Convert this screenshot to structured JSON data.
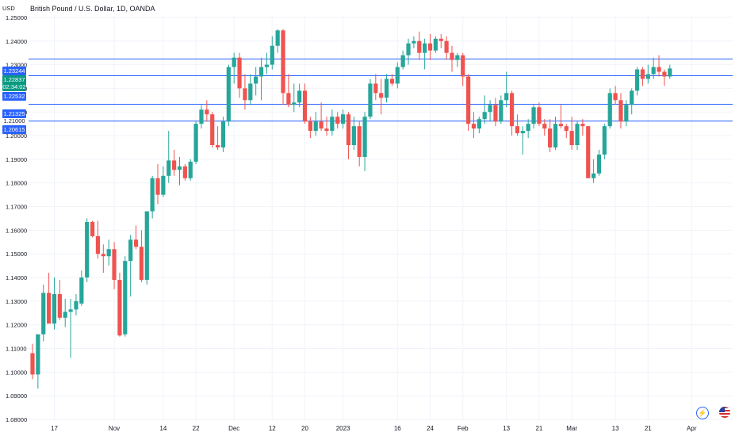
{
  "header": {
    "currency": "USD",
    "title": "British Pound / U.S. Dollar, 1D, OANDA"
  },
  "colors": {
    "up": "#26a69a",
    "down": "#ef5350",
    "level_line": "#2962ff",
    "price_badge": "#089981",
    "grid": "#f0f3fa",
    "text": "#131722"
  },
  "icons": [
    "flash-icon",
    "us-flag-icon"
  ],
  "chart_data": {
    "type": "candlestick",
    "title": "British Pound / U.S. Dollar, 1D, OANDA",
    "ylabel": "USD",
    "ylim": [
      1.078,
      1.254
    ],
    "y_ticks": [
      "1.25000",
      "1.24000",
      "1.23000",
      "1.22000",
      "1.21000",
      "1.20000",
      "1.19000",
      "1.18000",
      "1.17000",
      "1.16000",
      "1.15000",
      "1.14000",
      "1.13000",
      "1.12000",
      "1.11000",
      "1.10000",
      "1.09000",
      "1.08000"
    ],
    "x_ticks": [
      {
        "label": "17",
        "index": 4
      },
      {
        "label": "Nov",
        "index": 15
      },
      {
        "label": "14",
        "index": 24
      },
      {
        "label": "22",
        "index": 30
      },
      {
        "label": "Dec",
        "index": 37
      },
      {
        "label": "12",
        "index": 44
      },
      {
        "label": "20",
        "index": 50
      },
      {
        "label": "2023",
        "index": 57
      },
      {
        "label": "16",
        "index": 67
      },
      {
        "label": "24",
        "index": 73
      },
      {
        "label": "Feb",
        "index": 79
      },
      {
        "label": "13",
        "index": 87
      },
      {
        "label": "21",
        "index": 93
      },
      {
        "label": "Mar",
        "index": 99
      },
      {
        "label": "13",
        "index": 107
      },
      {
        "label": "21",
        "index": 113
      },
      {
        "label": "Apr",
        "index": 121
      }
    ],
    "horizontal_levels": [
      1.23244,
      1.22532,
      1.21325,
      1.20615
    ],
    "level_labels": {
      "top": "1.23244",
      "price": "1.22837",
      "countdown": "02:34:02",
      "low_band": "1.22532",
      "mid_1": "1.21325",
      "mid_2": "1.21000",
      "bottom": "1.20615"
    },
    "candles": [
      {
        "o": 1.108,
        "h": 1.112,
        "l": 1.097,
        "c": 1.099
      },
      {
        "o": 1.099,
        "h": 1.115,
        "l": 1.093,
        "c": 1.116
      },
      {
        "o": 1.116,
        "h": 1.137,
        "l": 1.113,
        "c": 1.1335
      },
      {
        "o": 1.1335,
        "h": 1.142,
        "l": 1.122,
        "c": 1.1205
      },
      {
        "o": 1.1205,
        "h": 1.14,
        "l": 1.118,
        "c": 1.133
      },
      {
        "o": 1.133,
        "h": 1.139,
        "l": 1.122,
        "c": 1.123
      },
      {
        "o": 1.123,
        "h": 1.131,
        "l": 1.119,
        "c": 1.1255
      },
      {
        "o": 1.1255,
        "h": 1.131,
        "l": 1.106,
        "c": 1.1265
      },
      {
        "o": 1.1265,
        "h": 1.133,
        "l": 1.124,
        "c": 1.13
      },
      {
        "o": 1.129,
        "h": 1.143,
        "l": 1.128,
        "c": 1.14
      },
      {
        "o": 1.14,
        "h": 1.165,
        "l": 1.138,
        "c": 1.1635
      },
      {
        "o": 1.1635,
        "h": 1.164,
        "l": 1.157,
        "c": 1.1575
      },
      {
        "o": 1.1575,
        "h": 1.164,
        "l": 1.148,
        "c": 1.15
      },
      {
        "o": 1.15,
        "h": 1.154,
        "l": 1.142,
        "c": 1.149
      },
      {
        "o": 1.149,
        "h": 1.156,
        "l": 1.145,
        "c": 1.152
      },
      {
        "o": 1.152,
        "h": 1.155,
        "l": 1.135,
        "c": 1.139
      },
      {
        "o": 1.139,
        "h": 1.142,
        "l": 1.115,
        "c": 1.1155
      },
      {
        "o": 1.116,
        "h": 1.149,
        "l": 1.115,
        "c": 1.147
      },
      {
        "o": 1.147,
        "h": 1.158,
        "l": 1.132,
        "c": 1.156
      },
      {
        "o": 1.156,
        "h": 1.162,
        "l": 1.152,
        "c": 1.153
      },
      {
        "o": 1.153,
        "h": 1.16,
        "l": 1.138,
        "c": 1.139
      },
      {
        "o": 1.139,
        "h": 1.168,
        "l": 1.137,
        "c": 1.168
      },
      {
        "o": 1.168,
        "h": 1.183,
        "l": 1.165,
        "c": 1.182
      },
      {
        "o": 1.182,
        "h": 1.188,
        "l": 1.171,
        "c": 1.175
      },
      {
        "o": 1.175,
        "h": 1.187,
        "l": 1.174,
        "c": 1.183
      },
      {
        "o": 1.183,
        "h": 1.202,
        "l": 1.18,
        "c": 1.1895
      },
      {
        "o": 1.1895,
        "h": 1.194,
        "l": 1.183,
        "c": 1.1855
      },
      {
        "o": 1.1855,
        "h": 1.191,
        "l": 1.179,
        "c": 1.187
      },
      {
        "o": 1.187,
        "h": 1.188,
        "l": 1.181,
        "c": 1.182
      },
      {
        "o": 1.182,
        "h": 1.19,
        "l": 1.181,
        "c": 1.189
      },
      {
        "o": 1.189,
        "h": 1.206,
        "l": 1.188,
        "c": 1.205
      },
      {
        "o": 1.205,
        "h": 1.213,
        "l": 1.203,
        "c": 1.211
      },
      {
        "o": 1.211,
        "h": 1.215,
        "l": 1.206,
        "c": 1.209
      },
      {
        "o": 1.209,
        "h": 1.21,
        "l": 1.195,
        "c": 1.196
      },
      {
        "o": 1.196,
        "h": 1.204,
        "l": 1.194,
        "c": 1.195
      },
      {
        "o": 1.195,
        "h": 1.208,
        "l": 1.193,
        "c": 1.206
      },
      {
        "o": 1.206,
        "h": 1.23,
        "l": 1.204,
        "c": 1.229
      },
      {
        "o": 1.229,
        "h": 1.235,
        "l": 1.222,
        "c": 1.233
      },
      {
        "o": 1.233,
        "h": 1.235,
        "l": 1.216,
        "c": 1.22
      },
      {
        "o": 1.22,
        "h": 1.226,
        "l": 1.211,
        "c": 1.215
      },
      {
        "o": 1.215,
        "h": 1.226,
        "l": 1.213,
        "c": 1.222
      },
      {
        "o": 1.222,
        "h": 1.229,
        "l": 1.217,
        "c": 1.225
      },
      {
        "o": 1.225,
        "h": 1.233,
        "l": 1.215,
        "c": 1.229
      },
      {
        "o": 1.229,
        "h": 1.235,
        "l": 1.226,
        "c": 1.23
      },
      {
        "o": 1.23,
        "h": 1.242,
        "l": 1.228,
        "c": 1.238
      },
      {
        "o": 1.238,
        "h": 1.245,
        "l": 1.235,
        "c": 1.2445
      },
      {
        "o": 1.2445,
        "h": 1.245,
        "l": 1.213,
        "c": 1.218
      },
      {
        "o": 1.218,
        "h": 1.226,
        "l": 1.212,
        "c": 1.213
      },
      {
        "o": 1.213,
        "h": 1.222,
        "l": 1.21,
        "c": 1.214
      },
      {
        "o": 1.214,
        "h": 1.222,
        "l": 1.212,
        "c": 1.219
      },
      {
        "o": 1.219,
        "h": 1.222,
        "l": 1.205,
        "c": 1.206
      },
      {
        "o": 1.206,
        "h": 1.208,
        "l": 1.199,
        "c": 1.202
      },
      {
        "o": 1.202,
        "h": 1.21,
        "l": 1.2,
        "c": 1.206
      },
      {
        "o": 1.206,
        "h": 1.214,
        "l": 1.202,
        "c": 1.203
      },
      {
        "o": 1.203,
        "h": 1.208,
        "l": 1.2,
        "c": 1.202
      },
      {
        "o": 1.202,
        "h": 1.211,
        "l": 1.2,
        "c": 1.208
      },
      {
        "o": 1.208,
        "h": 1.21,
        "l": 1.203,
        "c": 1.205
      },
      {
        "o": 1.205,
        "h": 1.211,
        "l": 1.203,
        "c": 1.209
      },
      {
        "o": 1.209,
        "h": 1.21,
        "l": 1.19,
        "c": 1.196
      },
      {
        "o": 1.196,
        "h": 1.208,
        "l": 1.194,
        "c": 1.204
      },
      {
        "o": 1.204,
        "h": 1.206,
        "l": 1.187,
        "c": 1.191
      },
      {
        "o": 1.191,
        "h": 1.21,
        "l": 1.185,
        "c": 1.208
      },
      {
        "o": 1.208,
        "h": 1.224,
        "l": 1.207,
        "c": 1.222
      },
      {
        "o": 1.222,
        "h": 1.226,
        "l": 1.215,
        "c": 1.218
      },
      {
        "o": 1.218,
        "h": 1.224,
        "l": 1.209,
        "c": 1.216
      },
      {
        "o": 1.216,
        "h": 1.226,
        "l": 1.214,
        "c": 1.224
      },
      {
        "o": 1.224,
        "h": 1.226,
        "l": 1.221,
        "c": 1.222
      },
      {
        "o": 1.222,
        "h": 1.231,
        "l": 1.22,
        "c": 1.229
      },
      {
        "o": 1.229,
        "h": 1.236,
        "l": 1.228,
        "c": 1.234
      },
      {
        "o": 1.234,
        "h": 1.241,
        "l": 1.23,
        "c": 1.239
      },
      {
        "o": 1.239,
        "h": 1.242,
        "l": 1.237,
        "c": 1.24
      },
      {
        "o": 1.24,
        "h": 1.244,
        "l": 1.232,
        "c": 1.235
      },
      {
        "o": 1.235,
        "h": 1.241,
        "l": 1.228,
        "c": 1.239
      },
      {
        "o": 1.239,
        "h": 1.243,
        "l": 1.232,
        "c": 1.236
      },
      {
        "o": 1.236,
        "h": 1.242,
        "l": 1.235,
        "c": 1.241
      },
      {
        "o": 1.241,
        "h": 1.243,
        "l": 1.237,
        "c": 1.24
      },
      {
        "o": 1.24,
        "h": 1.242,
        "l": 1.232,
        "c": 1.235
      },
      {
        "o": 1.235,
        "h": 1.238,
        "l": 1.227,
        "c": 1.232
      },
      {
        "o": 1.232,
        "h": 1.235,
        "l": 1.229,
        "c": 1.234
      },
      {
        "o": 1.234,
        "h": 1.235,
        "l": 1.221,
        "c": 1.225
      },
      {
        "o": 1.225,
        "h": 1.226,
        "l": 1.202,
        "c": 1.205
      },
      {
        "o": 1.205,
        "h": 1.21,
        "l": 1.199,
        "c": 1.203
      },
      {
        "o": 1.203,
        "h": 1.208,
        "l": 1.201,
        "c": 1.207
      },
      {
        "o": 1.207,
        "h": 1.217,
        "l": 1.205,
        "c": 1.21
      },
      {
        "o": 1.21,
        "h": 1.215,
        "l": 1.206,
        "c": 1.213
      },
      {
        "o": 1.213,
        "h": 1.216,
        "l": 1.204,
        "c": 1.206
      },
      {
        "o": 1.206,
        "h": 1.217,
        "l": 1.205,
        "c": 1.215
      },
      {
        "o": 1.215,
        "h": 1.227,
        "l": 1.212,
        "c": 1.218
      },
      {
        "o": 1.218,
        "h": 1.219,
        "l": 1.2,
        "c": 1.204
      },
      {
        "o": 1.204,
        "h": 1.209,
        "l": 1.2,
        "c": 1.201
      },
      {
        "o": 1.201,
        "h": 1.204,
        "l": 1.192,
        "c": 1.202
      },
      {
        "o": 1.202,
        "h": 1.207,
        "l": 1.199,
        "c": 1.205
      },
      {
        "o": 1.205,
        "h": 1.213,
        "l": 1.203,
        "c": 1.212
      },
      {
        "o": 1.212,
        "h": 1.214,
        "l": 1.204,
        "c": 1.205
      },
      {
        "o": 1.205,
        "h": 1.207,
        "l": 1.2,
        "c": 1.203
      },
      {
        "o": 1.203,
        "h": 1.207,
        "l": 1.193,
        "c": 1.195
      },
      {
        "o": 1.195,
        "h": 1.208,
        "l": 1.194,
        "c": 1.205
      },
      {
        "o": 1.205,
        "h": 1.213,
        "l": 1.203,
        "c": 1.204
      },
      {
        "o": 1.204,
        "h": 1.205,
        "l": 1.199,
        "c": 1.202
      },
      {
        "o": 1.202,
        "h": 1.208,
        "l": 1.194,
        "c": 1.196
      },
      {
        "o": 1.196,
        "h": 1.206,
        "l": 1.194,
        "c": 1.205
      },
      {
        "o": 1.205,
        "h": 1.207,
        "l": 1.2,
        "c": 1.204
      },
      {
        "o": 1.204,
        "h": 1.204,
        "l": 1.182,
        "c": 1.182
      },
      {
        "o": 1.182,
        "h": 1.19,
        "l": 1.18,
        "c": 1.184
      },
      {
        "o": 1.184,
        "h": 1.194,
        "l": 1.183,
        "c": 1.192
      },
      {
        "o": 1.192,
        "h": 1.205,
        "l": 1.19,
        "c": 1.204
      },
      {
        "o": 1.204,
        "h": 1.22,
        "l": 1.203,
        "c": 1.218
      },
      {
        "o": 1.218,
        "h": 1.221,
        "l": 1.213,
        "c": 1.215
      },
      {
        "o": 1.215,
        "h": 1.218,
        "l": 1.203,
        "c": 1.206
      },
      {
        "o": 1.206,
        "h": 1.215,
        "l": 1.204,
        "c": 1.213
      },
      {
        "o": 1.213,
        "h": 1.22,
        "l": 1.209,
        "c": 1.219
      },
      {
        "o": 1.219,
        "h": 1.229,
        "l": 1.217,
        "c": 1.228
      },
      {
        "o": 1.228,
        "h": 1.229,
        "l": 1.221,
        "c": 1.224
      },
      {
        "o": 1.224,
        "h": 1.23,
        "l": 1.222,
        "c": 1.226
      },
      {
        "o": 1.226,
        "h": 1.233,
        "l": 1.224,
        "c": 1.229
      },
      {
        "o": 1.229,
        "h": 1.234,
        "l": 1.225,
        "c": 1.227
      },
      {
        "o": 1.227,
        "h": 1.228,
        "l": 1.221,
        "c": 1.225
      },
      {
        "o": 1.225,
        "h": 1.23,
        "l": 1.224,
        "c": 1.2284
      }
    ]
  }
}
